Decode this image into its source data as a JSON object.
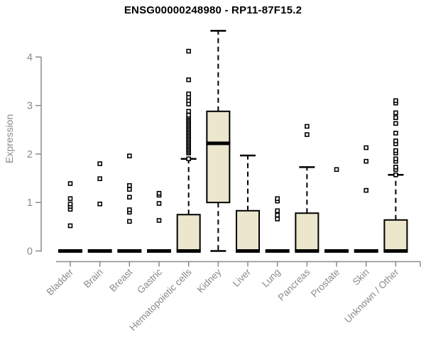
{
  "chart_data": {
    "type": "boxplot",
    "title": "ENSG00000248980 - RP11-87F15.2",
    "ylabel": "Expression",
    "xlabel": "",
    "ylim": [
      0,
      4.6
    ],
    "yticks": [
      0,
      1,
      2,
      3,
      4
    ],
    "grid": false,
    "legend": "none",
    "colors": {
      "box_fill": "#EBE6CC",
      "box_stroke": "#000000",
      "axis": "#8A8A8A",
      "title": "#000000"
    },
    "categories": [
      "Bladder",
      "Brain",
      "Breast",
      "Gastric",
      "Hematopoietic cells",
      "Kidney",
      "Liver",
      "Lung",
      "Pancreas",
      "Prostate",
      "Skin",
      "Unknown / Other"
    ],
    "boxes": [
      {
        "category": "Bladder",
        "low": 0,
        "q1": 0,
        "median": 0,
        "q3": 0,
        "high": 0,
        "outliers": [
          0.52,
          0.86,
          0.92,
          0.97,
          1.08,
          1.39
        ]
      },
      {
        "category": "Brain",
        "low": 0,
        "q1": 0,
        "median": 0,
        "q3": 0,
        "high": 0,
        "outliers": [
          0.97,
          1.49,
          1.8
        ]
      },
      {
        "category": "Breast",
        "low": 0,
        "q1": 0,
        "median": 0,
        "q3": 0,
        "high": 0,
        "outliers": [
          0.61,
          0.8,
          0.85,
          1.11,
          1.27,
          1.35,
          1.96
        ]
      },
      {
        "category": "Gastric",
        "low": 0,
        "q1": 0,
        "median": 0,
        "q3": 0,
        "high": 0,
        "outliers": [
          0.63,
          0.98,
          1.15,
          1.19
        ]
      },
      {
        "category": "Hematopoietic cells",
        "low": 0,
        "q1": 0,
        "median": 0,
        "q3": 0.75,
        "high": 1.9,
        "outliers": [
          1.9,
          2.02,
          2.05,
          2.08,
          2.11,
          2.14,
          2.17,
          2.2,
          2.23,
          2.26,
          2.29,
          2.32,
          2.35,
          2.38,
          2.41,
          2.44,
          2.47,
          2.5,
          2.53,
          2.56,
          2.59,
          2.62,
          2.65,
          2.68,
          2.71,
          2.74,
          2.77,
          2.8,
          2.88,
          3.03,
          3.1,
          3.17,
          3.24,
          3.53,
          4.12
        ]
      },
      {
        "category": "Kidney",
        "low": 0,
        "q1": 1.0,
        "median": 2.22,
        "q3": 2.88,
        "high": 4.54,
        "outliers": []
      },
      {
        "category": "Liver",
        "low": 0,
        "q1": 0,
        "median": 0,
        "q3": 0.83,
        "high": 1.97,
        "outliers": []
      },
      {
        "category": "Lung",
        "low": 0,
        "q1": 0,
        "median": 0,
        "q3": 0,
        "high": 0,
        "outliers": [
          0.66,
          0.74,
          0.83,
          1.03,
          1.08
        ]
      },
      {
        "category": "Pancreas",
        "low": 0,
        "q1": 0,
        "median": 0,
        "q3": 0.78,
        "high": 1.73,
        "outliers": [
          2.4,
          2.57
        ]
      },
      {
        "category": "Prostate",
        "low": 0,
        "q1": 0,
        "median": 0,
        "q3": 0,
        "high": 0,
        "outliers": [
          1.68
        ]
      },
      {
        "category": "Skin",
        "low": 0,
        "q1": 0,
        "median": 0,
        "q3": 0,
        "high": 0,
        "outliers": [
          1.25,
          1.85,
          2.13
        ]
      },
      {
        "category": "Unknown / Other",
        "low": 0,
        "q1": 0,
        "median": 0,
        "q3": 0.64,
        "high": 1.57,
        "outliers": [
          1.57,
          1.68,
          1.73,
          1.85,
          1.9,
          2.02,
          2.07,
          2.21,
          2.27,
          2.43,
          2.63,
          2.75,
          2.85,
          3.05,
          3.1
        ]
      }
    ]
  }
}
